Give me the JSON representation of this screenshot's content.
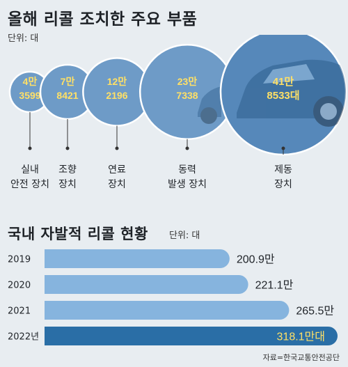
{
  "title": "올해 리콜 조치한 주요 부품",
  "unit1": "단위: 대",
  "title2": "국내 자발적 리콜 현황",
  "unit2": "단위: 대",
  "source": "자료=한국교통안전공단",
  "colors": {
    "bg": "#e8edf1",
    "bubble": "#6e9bc7",
    "bubbleDark": "#5688ba",
    "text": "#ffe066",
    "bar": "#86b4de",
    "barHighlight": "#2a6ea6"
  },
  "chart_data": [
    {
      "type": "bubble",
      "title": "올해 리콜 조치한 주요 부품",
      "unit": "대",
      "items": [
        {
          "category": [
            "실내",
            "안전 장치"
          ],
          "label": [
            "4만",
            "3599"
          ],
          "value": 43599
        },
        {
          "category": [
            "조향",
            "장치"
          ],
          "label": [
            "7만",
            "8421"
          ],
          "value": 78421
        },
        {
          "category": [
            "연료",
            "장치"
          ],
          "label": [
            "12만",
            "2196"
          ],
          "value": 122196
        },
        {
          "category": [
            "동력",
            "발생 장치"
          ],
          "label": [
            "23만",
            "7338"
          ],
          "value": 237338
        },
        {
          "category": [
            "제동",
            "장치"
          ],
          "label": [
            "41만",
            "8533대"
          ],
          "value": 418533
        }
      ]
    },
    {
      "type": "bar",
      "title": "국내 자발적 리콜 현황",
      "unit": "대",
      "categories": [
        "2019",
        "2020",
        "2021",
        "2022년"
      ],
      "values": [
        2009000,
        2211000,
        2655000,
        3181000
      ],
      "labels": [
        "200.9만",
        "221.1만",
        "265.5만",
        "318.1만대"
      ],
      "highlight": 3
    }
  ]
}
